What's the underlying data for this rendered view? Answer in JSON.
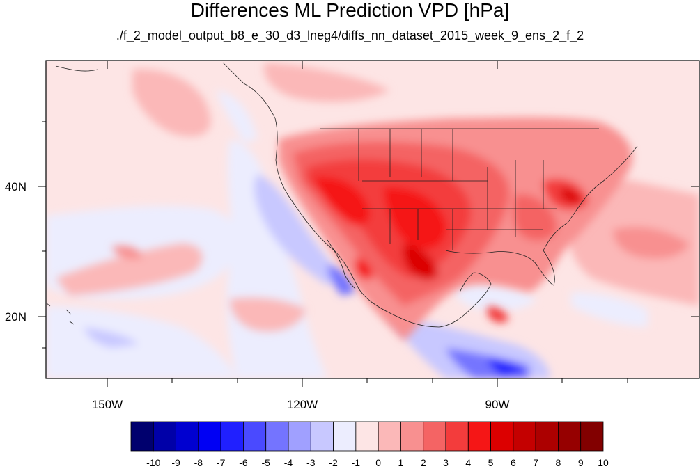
{
  "title": "Differences ML Prediction VPD [hPa]",
  "subtitle": "./f_2_model_output_b8_e_30_d3_lneg4/diffs_nn_dataset_2015_week_9_ens_2_f_2",
  "map": {
    "projection": "cylindrical equidistant",
    "lon_range": [
      -160,
      -60
    ],
    "lat_range": [
      10,
      59
    ],
    "background_color": "#fde5e5",
    "lon_ticks": [
      {
        "value": -150,
        "label": "150W"
      },
      {
        "value": -120,
        "label": "120W"
      },
      {
        "value": -90,
        "label": "90W"
      }
    ],
    "lat_ticks": [
      {
        "value": 40,
        "label": "40N"
      },
      {
        "value": 20,
        "label": "20N"
      }
    ]
  },
  "colorbar": {
    "colors": [
      "#00006e",
      "#0000a8",
      "#0000d0",
      "#0000f4",
      "#2020ff",
      "#4a4aff",
      "#7474ff",
      "#a0a0ff",
      "#c8c8ff",
      "#ecedfe",
      "#fde5e5",
      "#fbb8b8",
      "#f89090",
      "#f46464",
      "#f33c3c",
      "#f51616",
      "#dc0000",
      "#c40000",
      "#ac0000",
      "#960000",
      "#820000"
    ],
    "labels": [
      "-10",
      "-9",
      "-8",
      "-7",
      "-6",
      "-5",
      "-4",
      "-3",
      "-2",
      "-1",
      "0",
      "1",
      "2",
      "3",
      "4",
      "5",
      "6",
      "7",
      "8",
      "9",
      "10"
    ]
  }
}
